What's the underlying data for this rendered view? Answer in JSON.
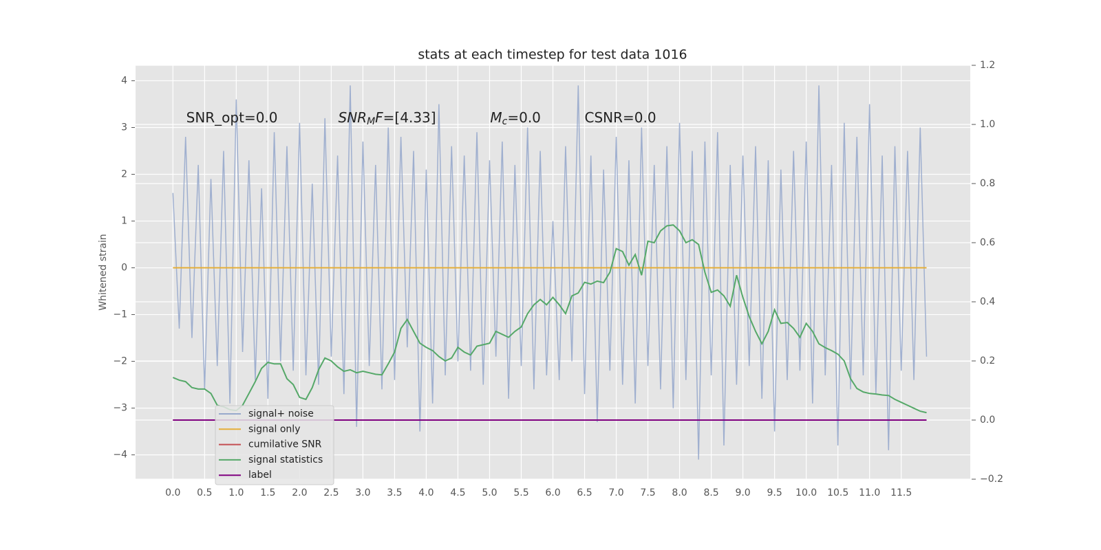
{
  "chart_data": {
    "type": "line",
    "title": "stats at each timestep for test data 1016",
    "ylabel": "Whitened strain",
    "annotations": [
      [
        {
          "text": "SNR_opt=0.0"
        }
      ],
      [
        {
          "text": "SNR",
          "style": "italic"
        },
        {
          "text": "M",
          "style": "sub"
        },
        {
          "text": "F",
          "style": "italic"
        },
        {
          "text": "=[4.33]"
        }
      ],
      [
        {
          "text": "M",
          "style": "italic"
        },
        {
          "text": "c",
          "style": "sub"
        },
        {
          "text": "=0.0"
        }
      ],
      [
        {
          "text": "CSNR=0.0"
        }
      ]
    ],
    "xlim": [
      -0.59,
      12.59
    ],
    "ylim": [
      -4.52,
      4.33
    ],
    "y2lim": [
      -0.2,
      1.2
    ],
    "xticks": [
      {
        "value": 0,
        "label": "0.0"
      },
      0.5,
      {
        "value": 1,
        "label": "1.0"
      },
      1.5,
      {
        "value": 2,
        "label": "2.0"
      },
      2.5,
      {
        "value": 3,
        "label": "3.0"
      },
      3.5,
      {
        "value": 4,
        "label": "4.0"
      },
      4.5,
      {
        "value": 5,
        "label": "5.0"
      },
      5.5,
      {
        "value": 6,
        "label": "6.0"
      },
      6.5,
      {
        "value": 7,
        "label": "7.0"
      },
      7.5,
      {
        "value": 8,
        "label": "8.0"
      },
      8.5,
      {
        "value": 9,
        "label": "9.0"
      },
      9.5,
      {
        "value": 10,
        "label": "10.0"
      },
      10.5,
      {
        "value": 11,
        "label": "11.0"
      },
      11.5
    ],
    "yticks": [
      {
        "value": -4,
        "label": "−4"
      },
      {
        "value": -3,
        "label": "−3"
      },
      {
        "value": -2,
        "label": "−2"
      },
      {
        "value": -1,
        "label": "−1"
      },
      0,
      1,
      2,
      3,
      4
    ],
    "y2ticks": [
      {
        "value": -0.2,
        "label": "−0.2"
      },
      {
        "value": 0,
        "label": "0.0"
      },
      0.2,
      0.4,
      0.6,
      0.8,
      {
        "value": 1,
        "label": "1.0"
      },
      1.2
    ],
    "grid": true,
    "legend": "lower left",
    "x": [
      0.0,
      0.1,
      0.2,
      0.3,
      0.4,
      0.5,
      0.6,
      0.7,
      0.8,
      0.9,
      1.0,
      1.1,
      1.2,
      1.3,
      1.4,
      1.5,
      1.6,
      1.7,
      1.8,
      1.9,
      2.0,
      2.1,
      2.2,
      2.3,
      2.4,
      2.5,
      2.6,
      2.7,
      2.8,
      2.9,
      3.0,
      3.1,
      3.2,
      3.3,
      3.4,
      3.5,
      3.6,
      3.7,
      3.8,
      3.9,
      4.0,
      4.1,
      4.2,
      4.3,
      4.4,
      4.5,
      4.6,
      4.7,
      4.8,
      4.9,
      5.0,
      5.1,
      5.2,
      5.3,
      5.4,
      5.5,
      5.6,
      5.7,
      5.8,
      5.9,
      6.0,
      6.1,
      6.2,
      6.3,
      6.4,
      6.5,
      6.6,
      6.7,
      6.8,
      6.9,
      7.0,
      7.1,
      7.2,
      7.3,
      7.4,
      7.5,
      7.6,
      7.7,
      7.8,
      7.9,
      8.0,
      8.1,
      8.2,
      8.3,
      8.4,
      8.5,
      8.6,
      8.7,
      8.8,
      8.9,
      9.0,
      9.1,
      9.2,
      9.3,
      9.4,
      9.5,
      9.6,
      9.7,
      9.8,
      9.9,
      10.0,
      10.1,
      10.2,
      10.3,
      10.4,
      10.5,
      10.6,
      10.7,
      10.8,
      10.9,
      11.0,
      11.1,
      11.2,
      11.3,
      11.4,
      11.5,
      11.6,
      11.7,
      11.8,
      11.9
    ],
    "series": [
      {
        "name": "signal+ noise",
        "color": "#97a9cc",
        "axis": "y",
        "values": [
          1.6,
          -1.3,
          2.8,
          -1.5,
          2.2,
          -2.6,
          1.9,
          -2.1,
          2.5,
          -2.9,
          3.6,
          -1.8,
          2.3,
          -2.4,
          1.7,
          -2.8,
          2.9,
          -2.0,
          2.6,
          -2.2,
          3.1,
          -2.3,
          1.8,
          -2.5,
          3.2,
          -1.9,
          2.4,
          -2.7,
          3.9,
          -3.4,
          2.7,
          -2.1,
          2.2,
          -2.6,
          3.0,
          -2.4,
          2.8,
          -1.7,
          2.5,
          -3.5,
          2.1,
          -2.9,
          3.5,
          -2.3,
          2.6,
          -2.0,
          2.4,
          -2.2,
          2.9,
          -2.5,
          2.3,
          -1.9,
          2.7,
          -2.8,
          2.2,
          -2.1,
          3.0,
          -2.6,
          2.5,
          -2.3,
          1.0,
          -2.4,
          2.6,
          -2.0,
          3.9,
          -2.7,
          2.4,
          -3.3,
          2.1,
          -2.2,
          2.8,
          -2.5,
          2.3,
          -2.9,
          3.0,
          -2.1,
          2.2,
          -2.6,
          2.6,
          -3.0,
          3.1,
          -2.4,
          2.5,
          -4.1,
          2.7,
          -2.3,
          2.9,
          -3.8,
          2.2,
          -2.5,
          2.4,
          -2.1,
          2.6,
          -2.8,
          2.3,
          -3.5,
          2.1,
          -2.4,
          2.5,
          -2.2,
          2.7,
          -2.9,
          3.9,
          -2.3,
          2.2,
          -3.8,
          3.1,
          -2.6,
          2.8,
          -2.3,
          3.5,
          -2.7,
          2.4,
          -3.9,
          2.6,
          -2.2,
          2.5,
          -2.4,
          3.0,
          -1.9
        ]
      },
      {
        "name": "signal only",
        "color": "#e5ae38",
        "axis": "y",
        "values": [
          0,
          0,
          0,
          0,
          0,
          0,
          0,
          0,
          0,
          0,
          0,
          0,
          0,
          0,
          0,
          0,
          0,
          0,
          0,
          0,
          0,
          0,
          0,
          0,
          0,
          0,
          0,
          0,
          0,
          0,
          0,
          0,
          0,
          0,
          0,
          0,
          0,
          0,
          0,
          0,
          0,
          0,
          0,
          0,
          0,
          0,
          0,
          0,
          0,
          0,
          0,
          0,
          0,
          0,
          0,
          0,
          0,
          0,
          0,
          0,
          0,
          0,
          0,
          0,
          0,
          0,
          0,
          0,
          0,
          0,
          0,
          0,
          0,
          0,
          0,
          0,
          0,
          0,
          0,
          0,
          0,
          0,
          0,
          0,
          0,
          0,
          0,
          0,
          0,
          0,
          0,
          0,
          0,
          0,
          0,
          0,
          0,
          0,
          0,
          0,
          0,
          0,
          0,
          0,
          0,
          0,
          0,
          0,
          0,
          0,
          0,
          0,
          0,
          0,
          0,
          0,
          0,
          0,
          0,
          0
        ]
      },
      {
        "name": "cumilative SNR",
        "color": "#c44e52",
        "axis": "y2",
        "values": [
          0,
          0,
          0,
          0,
          0,
          0,
          0,
          0,
          0,
          0,
          0,
          0,
          0,
          0,
          0,
          0,
          0,
          0,
          0,
          0,
          0,
          0,
          0,
          0,
          0,
          0,
          0,
          0,
          0,
          0,
          0,
          0,
          0,
          0,
          0,
          0,
          0,
          0,
          0,
          0,
          0,
          0,
          0,
          0,
          0,
          0,
          0,
          0,
          0,
          0,
          0,
          0,
          0,
          0,
          0,
          0,
          0,
          0,
          0,
          0,
          0,
          0,
          0,
          0,
          0,
          0,
          0,
          0,
          0,
          0,
          0,
          0,
          0,
          0,
          0,
          0,
          0,
          0,
          0,
          0,
          0,
          0,
          0,
          0,
          0,
          0,
          0,
          0,
          0,
          0,
          0,
          0,
          0,
          0,
          0,
          0,
          0,
          0,
          0,
          0,
          0,
          0,
          0,
          0,
          0,
          0,
          0,
          0,
          0,
          0,
          0,
          0,
          0,
          0,
          0,
          0,
          0,
          0,
          0,
          0
        ]
      },
      {
        "name": "signal statistics",
        "color": "#55a868",
        "axis": "y2",
        "values": [
          0.144,
          0.135,
          0.13,
          0.11,
          0.105,
          0.105,
          0.09,
          0.05,
          0.045,
          0.035,
          0.032,
          0.05,
          0.09,
          0.13,
          0.175,
          0.195,
          0.19,
          0.19,
          0.14,
          0.12,
          0.077,
          0.07,
          0.11,
          0.17,
          0.21,
          0.2,
          0.18,
          0.165,
          0.17,
          0.16,
          0.165,
          0.16,
          0.155,
          0.153,
          0.19,
          0.23,
          0.31,
          0.34,
          0.3,
          0.26,
          0.246,
          0.235,
          0.215,
          0.2,
          0.21,
          0.246,
          0.23,
          0.22,
          0.25,
          0.255,
          0.26,
          0.3,
          0.29,
          0.28,
          0.3,
          0.315,
          0.36,
          0.39,
          0.408,
          0.39,
          0.415,
          0.39,
          0.36,
          0.42,
          0.43,
          0.466,
          0.46,
          0.47,
          0.465,
          0.5,
          0.58,
          0.57,
          0.524,
          0.56,
          0.49,
          0.605,
          0.6,
          0.64,
          0.657,
          0.66,
          0.64,
          0.6,
          0.61,
          0.594,
          0.5,
          0.432,
          0.44,
          0.42,
          0.385,
          0.49,
          0.415,
          0.35,
          0.3,
          0.258,
          0.3,
          0.373,
          0.327,
          0.33,
          0.31,
          0.28,
          0.327,
          0.3,
          0.258,
          0.245,
          0.235,
          0.223,
          0.2,
          0.14,
          0.107,
          0.095,
          0.09,
          0.088,
          0.085,
          0.083,
          0.07,
          0.06,
          0.05,
          0.04,
          0.03,
          0.025
        ]
      },
      {
        "name": "label",
        "color": "#800080",
        "axis": "y2",
        "values": [
          0,
          0,
          0,
          0,
          0,
          0,
          0,
          0,
          0,
          0,
          0,
          0,
          0,
          0,
          0,
          0,
          0,
          0,
          0,
          0,
          0,
          0,
          0,
          0,
          0,
          0,
          0,
          0,
          0,
          0,
          0,
          0,
          0,
          0,
          0,
          0,
          0,
          0,
          0,
          0,
          0,
          0,
          0,
          0,
          0,
          0,
          0,
          0,
          0,
          0,
          0,
          0,
          0,
          0,
          0,
          0,
          0,
          0,
          0,
          0,
          0,
          0,
          0,
          0,
          0,
          0,
          0,
          0,
          0,
          0,
          0,
          0,
          0,
          0,
          0,
          0,
          0,
          0,
          0,
          0,
          0,
          0,
          0,
          0,
          0,
          0,
          0,
          0,
          0,
          0,
          0,
          0,
          0,
          0,
          0,
          0,
          0,
          0,
          0,
          0,
          0,
          0,
          0,
          0,
          0,
          0,
          0,
          0,
          0,
          0,
          0,
          0,
          0,
          0,
          0,
          0,
          0,
          0,
          0,
          0
        ]
      }
    ]
  }
}
